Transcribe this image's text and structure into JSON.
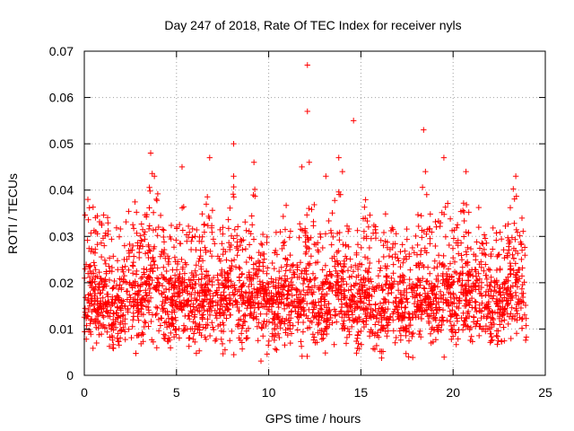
{
  "chart_data": {
    "type": "scatter",
    "title": "Day 247 of 2018, Rate Of TEC Index for receiver nyls",
    "xlabel": "GPS time / hours",
    "ylabel": "ROTI / TECUs",
    "xlim": [
      0,
      25
    ],
    "ylim": [
      0,
      0.07
    ],
    "xticks": [
      0,
      5,
      10,
      15,
      20,
      25
    ],
    "yticks": [
      0,
      0.01,
      0.02,
      0.03,
      0.04,
      0.05,
      0.06,
      0.07
    ],
    "xtick_labels": [
      "0",
      "5",
      "10",
      "15",
      "20",
      "25"
    ],
    "ytick_labels": [
      "0",
      "0.01",
      "0.02",
      "0.03",
      "0.04",
      "0.05",
      "0.06",
      "0.07"
    ],
    "grid": true,
    "marker": "+",
    "color": "#ff0000",
    "series": [
      {
        "name": "ROTI",
        "description_of_distribution": "dense band 0.005-0.03 over 0-24 h",
        "x_range": [
          0,
          24
        ],
        "notable_points": [
          {
            "x": 12.1,
            "y": 0.067
          },
          {
            "x": 12.1,
            "y": 0.057
          },
          {
            "x": 14.6,
            "y": 0.055
          },
          {
            "x": 18.4,
            "y": 0.053
          },
          {
            "x": 8.1,
            "y": 0.05
          },
          {
            "x": 3.6,
            "y": 0.048
          },
          {
            "x": 19.5,
            "y": 0.047
          },
          {
            "x": 13.8,
            "y": 0.047
          },
          {
            "x": 6.8,
            "y": 0.047
          },
          {
            "x": 9.2,
            "y": 0.046
          },
          {
            "x": 5.3,
            "y": 0.045
          },
          {
            "x": 11.8,
            "y": 0.045
          },
          {
            "x": 12.2,
            "y": 0.046
          },
          {
            "x": 18.5,
            "y": 0.044
          },
          {
            "x": 14.0,
            "y": 0.044
          },
          {
            "x": 20.7,
            "y": 0.044
          },
          {
            "x": 23.4,
            "y": 0.043
          },
          {
            "x": 3.8,
            "y": 0.043
          },
          {
            "x": 8.1,
            "y": 0.043
          },
          {
            "x": 13.1,
            "y": 0.043
          }
        ]
      }
    ]
  }
}
